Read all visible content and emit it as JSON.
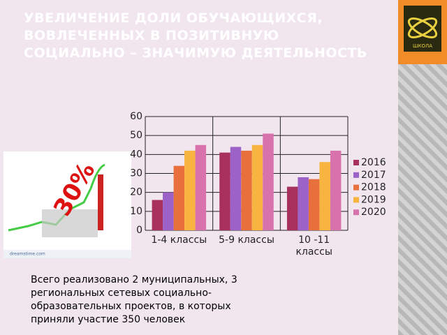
{
  "title": "УВЕЛИЧЕНИЕ ДОЛИ ОБУЧАЮЩИХСЯ, ВОВЛЕЧЕННЫХ В  ПОЗИТИВНУЮ СОЦИАЛЬНО – ЗНАЧИМУЮ ДЕЯТЕЛЬНОСТЬ",
  "logo_text": "ШКОЛА",
  "image": {
    "label": "30%",
    "caption": "dreamstime.com"
  },
  "note": "Всего реализовано 2 муниципальных, 3 региональных сетевых социально-образовательных проектов, в которых приняли участие 350 человек",
  "chart_data": {
    "type": "bar",
    "categories": [
      "1-4 классы",
      "5-9 классы",
      "10 -11 классы"
    ],
    "series": [
      {
        "name": "2016",
        "color": "#a8305c",
        "values": [
          16,
          41,
          23
        ]
      },
      {
        "name": "2017",
        "color": "#9c62c8",
        "values": [
          20,
          44,
          28
        ]
      },
      {
        "name": "2018",
        "color": "#e8703c",
        "values": [
          34,
          42,
          27
        ]
      },
      {
        "name": "2019",
        "color": "#f8b440",
        "values": [
          42,
          45,
          36
        ]
      },
      {
        "name": "2020",
        "color": "#d872ac",
        "values": [
          45,
          51,
          42
        ]
      }
    ],
    "ylim": [
      0,
      60
    ],
    "yticks": [
      0,
      10,
      20,
      30,
      40,
      50,
      60
    ],
    "grid": true,
    "legend": "right"
  }
}
